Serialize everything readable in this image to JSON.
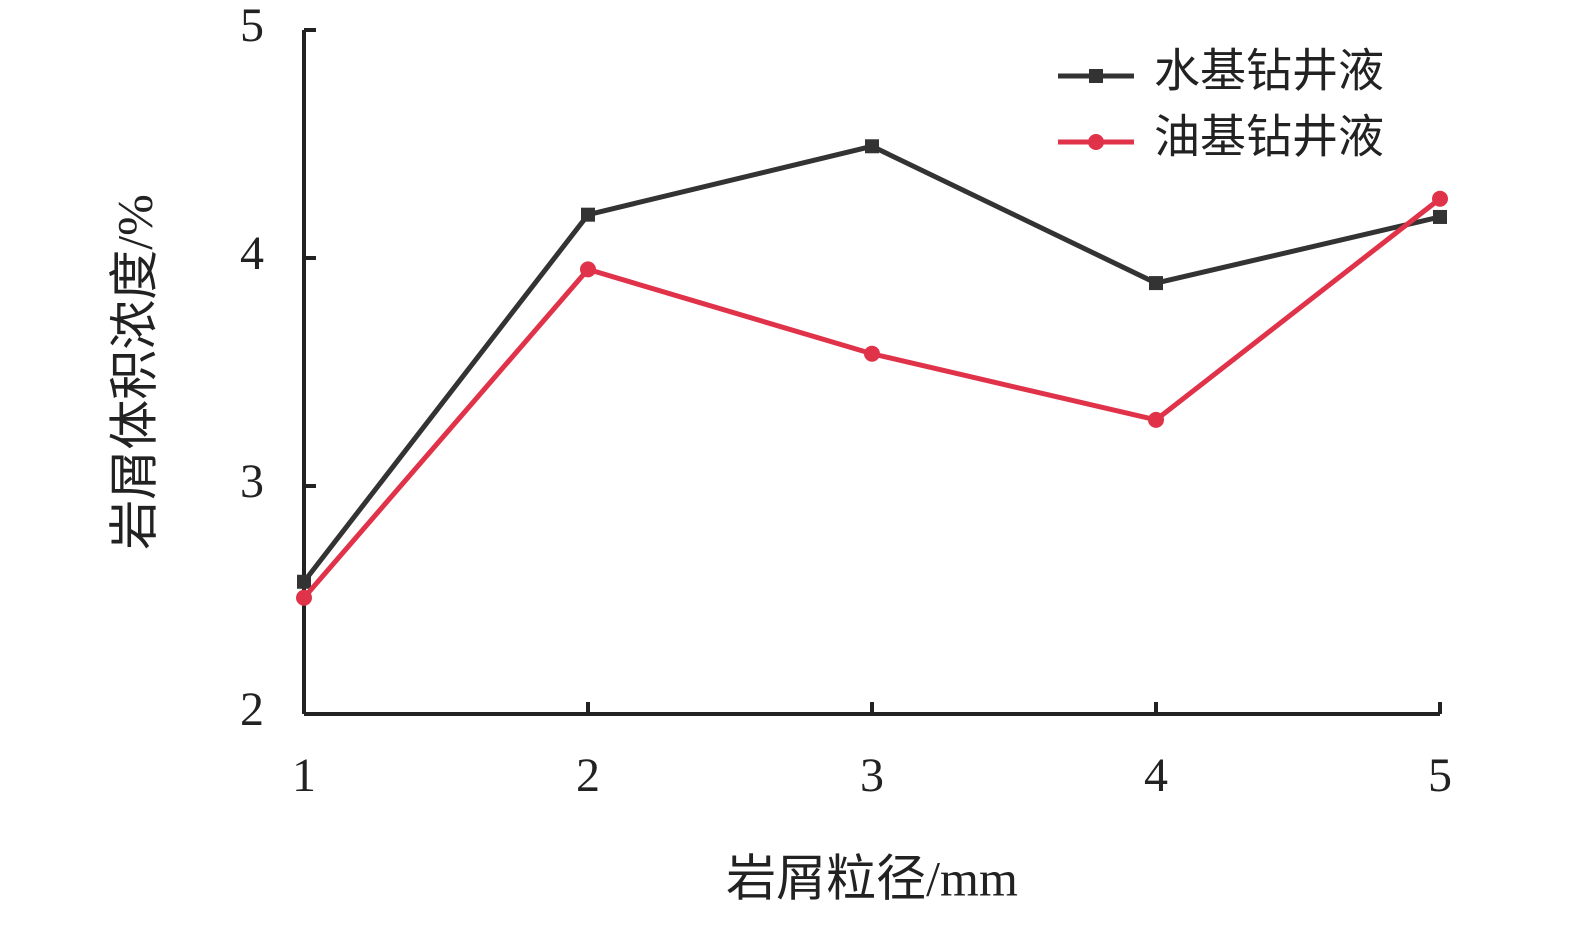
{
  "chart_data": {
    "type": "line",
    "x_label": "岩屑粒径/mm",
    "y_label": "岩屑体积浓度/%",
    "x": [
      1,
      2,
      3,
      4,
      5
    ],
    "series": [
      {
        "name": "水基钻井液",
        "color": "#333333",
        "marker": "square",
        "values": [
          2.58,
          4.19,
          4.49,
          3.89,
          4.18
        ]
      },
      {
        "name": "油基钻井液",
        "color": "#e0334a",
        "marker": "circle",
        "values": [
          2.51,
          3.95,
          3.58,
          3.29,
          4.26
        ]
      }
    ],
    "xlim": [
      1,
      5
    ],
    "xticks": [
      1,
      2,
      3,
      4,
      5
    ],
    "ylim": [
      2,
      5
    ],
    "yticks": [
      2,
      3,
      4,
      5
    ],
    "legend": "upper-right",
    "grid": false
  }
}
